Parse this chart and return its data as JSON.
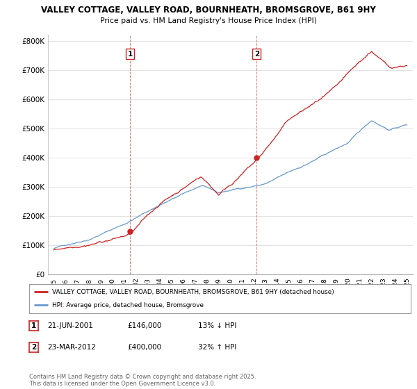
{
  "title_line1": "VALLEY COTTAGE, VALLEY ROAD, BOURNHEATH, BROMSGROVE, B61 9HY",
  "title_line2": "Price paid vs. HM Land Registry's House Price Index (HPI)",
  "ylim": [
    0,
    820000
  ],
  "yticks": [
    0,
    100000,
    200000,
    300000,
    400000,
    500000,
    600000,
    700000,
    800000
  ],
  "ytick_labels": [
    "£0",
    "£100K",
    "£200K",
    "£300K",
    "£400K",
    "£500K",
    "£600K",
    "£700K",
    "£800K"
  ],
  "xlim_start": 1994.5,
  "xlim_end": 2025.5,
  "hpi_color": "#6699cc",
  "price_color": "#cc2222",
  "vline_color": "#cc2222",
  "annotation1": {
    "year": 2001.47,
    "price": 146000,
    "label": "1"
  },
  "annotation2": {
    "year": 2012.23,
    "price": 400000,
    "label": "2"
  },
  "legend_label_red": "VALLEY COTTAGE, VALLEY ROAD, BOURNHEATH, BROMSGROVE, B61 9HY (detached house)",
  "legend_label_blue": "HPI: Average price, detached house, Bromsgrove",
  "table_rows": [
    {
      "num": "1",
      "date": "21-JUN-2001",
      "price": "£146,000",
      "hpi": "13% ↓ HPI"
    },
    {
      "num": "2",
      "date": "23-MAR-2012",
      "price": "£400,000",
      "hpi": "32% ↑ HPI"
    }
  ],
  "footer": "Contains HM Land Registry data © Crown copyright and database right 2025.\nThis data is licensed under the Open Government Licence v3.0.",
  "bg_color": "#ffffff",
  "grid_color": "#dddddd"
}
